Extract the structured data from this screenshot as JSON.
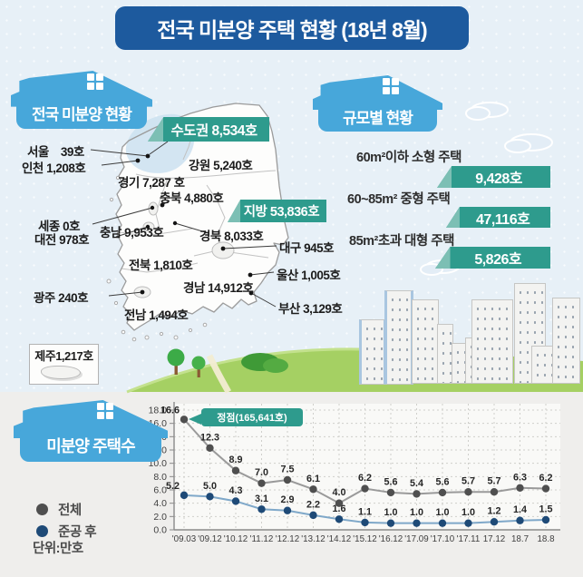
{
  "title": "전국 미분양 주택 현황 (18년 8월)",
  "map_section": {
    "banner": "전국 미분양 현황",
    "metro_ribbon": "수도권 8,534호",
    "province_ribbon": "지방 53,836호",
    "jeju_label": "제주1,217호",
    "regions": [
      {
        "id": "seoul",
        "label": "서울    39호"
      },
      {
        "id": "incheon",
        "label": "인천 1,208호"
      },
      {
        "id": "gyeonggi",
        "label": "경기 7,287 호"
      },
      {
        "id": "gangwon",
        "label": "강원 5,240호"
      },
      {
        "id": "chungbuk",
        "label": "충북 4,880호"
      },
      {
        "id": "sejong",
        "label": "세종 0호"
      },
      {
        "id": "chungnam",
        "label": "충남 9,953호"
      },
      {
        "id": "daejeon",
        "label": "대전 978호"
      },
      {
        "id": "gyeongbuk",
        "label": "경북 8,033호"
      },
      {
        "id": "daegu",
        "label": "대구 945호"
      },
      {
        "id": "jeonbuk",
        "label": "전북 1,810호"
      },
      {
        "id": "ulsan",
        "label": "울산 1,005호"
      },
      {
        "id": "gwangju",
        "label": "광주 240호"
      },
      {
        "id": "gyeongnam",
        "label": "경남 14,912호"
      },
      {
        "id": "jeonnam",
        "label": "전남 1,494호"
      },
      {
        "id": "busan",
        "label": "부산 3,129호"
      }
    ]
  },
  "size_section": {
    "banner": "규모별 현황",
    "items": [
      {
        "label": "60m²이하 소형 주택",
        "value": "9,428호"
      },
      {
        "label": "60~85m² 중형 주택",
        "value": "47,116호"
      },
      {
        "label": "85m²초과 대형 주택",
        "value": "5,826호"
      }
    ]
  },
  "chart_section": {
    "banner": "미분양 주택수",
    "legend": [
      {
        "name": "전체"
      },
      {
        "name": "준공 후"
      }
    ],
    "unit": "단위:만호"
  },
  "chart_data": {
    "type": "line",
    "title": "미분양 주택수",
    "unit": "만호",
    "categories": [
      "'09.03",
      "'09.12",
      "'10.12",
      "'11.12",
      "'12.12",
      "'13.12",
      "'14.12",
      "'15.12",
      "'16.12",
      "'17.09",
      "'17.10",
      "'17.11",
      "17.12",
      "18.7",
      "18.8"
    ],
    "series": [
      {
        "name": "전체",
        "line_color": "#9a9a9a",
        "dot_color": "#4f4f4f",
        "values": [
          16.6,
          12.3,
          8.9,
          7.0,
          7.5,
          6.1,
          4.0,
          6.2,
          5.6,
          5.4,
          5.6,
          5.7,
          5.7,
          6.3,
          6.2
        ]
      },
      {
        "name": "준공 후",
        "line_color": "#7fa8c9",
        "dot_color": "#1e4a77",
        "values": [
          5.2,
          5.0,
          4.3,
          3.1,
          2.9,
          2.2,
          1.6,
          1.1,
          1.0,
          1.0,
          1.0,
          1.0,
          1.2,
          1.4,
          1.5
        ]
      }
    ],
    "ylim": [
      0,
      18
    ],
    "ytick_step": 2,
    "grid": true,
    "legend_position": "left",
    "annotation": {
      "text": "정점(165,641호)",
      "target_series": "전체",
      "target_index": 0
    }
  },
  "colors": {
    "title_blue": "#1d5a9e",
    "banner_blue": "#47a7da",
    "ribbon_teal": "#2e9b8d",
    "metro_highlight": "#cde1f0",
    "grass_green": "#a5d063",
    "total_dot": "#4f4f4f",
    "completed_dot": "#1e4a77"
  }
}
